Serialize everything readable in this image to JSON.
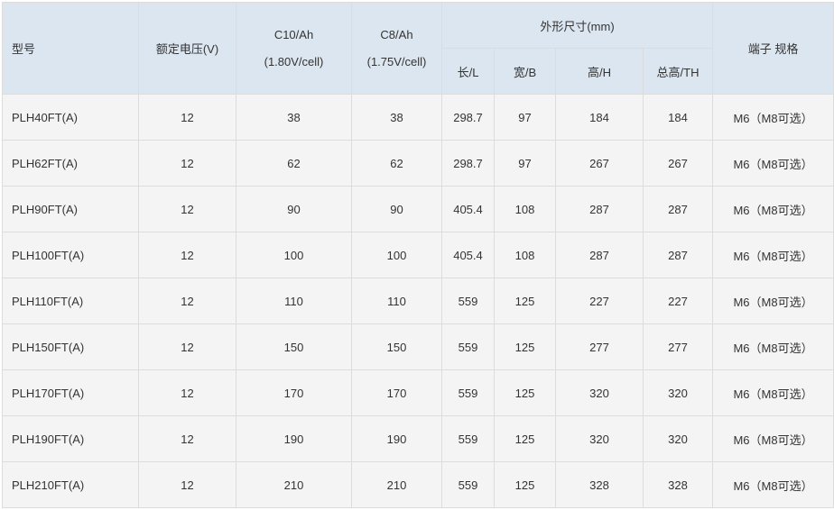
{
  "header": {
    "model": "型号",
    "voltage": "额定电压(V)",
    "c10_line1": "C10/Ah",
    "c10_line2": "(1.80V/cell)",
    "c8_line1": "C8/Ah",
    "c8_line2": "(1.75V/cell)",
    "dimensions": "外形尺寸(mm)",
    "length": "长/L",
    "width": "宽/B",
    "height": "高/H",
    "total_height": "总高/TH",
    "terminal": "端子 规格"
  },
  "rows": [
    [
      "PLH40FT(A)",
      "12",
      "38",
      "38",
      "298.7",
      "97",
      "184",
      "184",
      "M6（M8可选）"
    ],
    [
      "PLH62FT(A)",
      "12",
      "62",
      "62",
      "298.7",
      "97",
      "267",
      "267",
      "M6（M8可选）"
    ],
    [
      "PLH90FT(A)",
      "12",
      "90",
      "90",
      "405.4",
      "108",
      "287",
      "287",
      "M6（M8可选）"
    ],
    [
      "PLH100FT(A)",
      "12",
      "100",
      "100",
      "405.4",
      "108",
      "287",
      "287",
      "M6（M8可选）"
    ],
    [
      "PLH110FT(A)",
      "12",
      "110",
      "110",
      "559",
      "125",
      "227",
      "227",
      "M6（M8可选）"
    ],
    [
      "PLH150FT(A)",
      "12",
      "150",
      "150",
      "559",
      "125",
      "277",
      "277",
      "M6（M8可选）"
    ],
    [
      "PLH170FT(A)",
      "12",
      "170",
      "170",
      "559",
      "125",
      "320",
      "320",
      "M6（M8可选）"
    ],
    [
      "PLH190FT(A)",
      "12",
      "190",
      "190",
      "559",
      "125",
      "320",
      "320",
      "M6（M8可选）"
    ],
    [
      "PLH210FT(A)",
      "12",
      "210",
      "210",
      "559",
      "125",
      "328",
      "328",
      "M6（M8可选）"
    ]
  ]
}
